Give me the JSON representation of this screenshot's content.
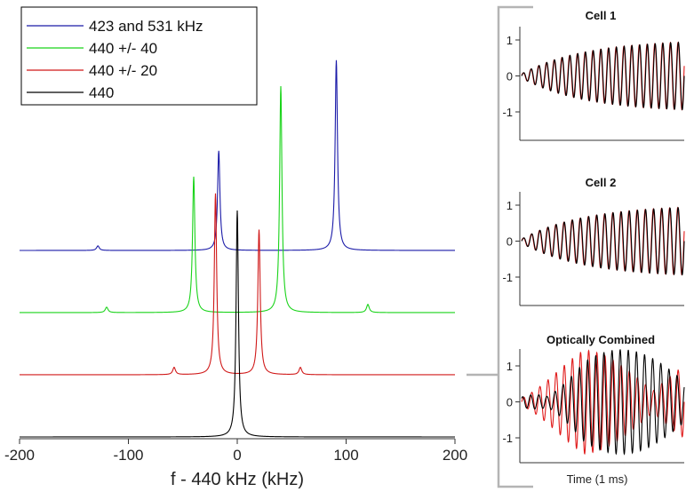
{
  "chart_data": [
    {
      "type": "line",
      "title": "",
      "xlabel": "f - 440 kHz (kHz)",
      "ylabel": "",
      "xlim": [
        -200,
        200
      ],
      "xticks": [
        -200,
        -100,
        0,
        100,
        200
      ],
      "xtick_labels": [
        "-200",
        "-100",
        "0",
        "100",
        "200"
      ],
      "legend_position": "top-left",
      "series": [
        {
          "name": "423 and 531 kHz",
          "color": "#1a1aa8",
          "baseline_offset": 3,
          "peaks": [
            {
              "x": -17,
              "height": 1.1
            },
            {
              "x": 91,
              "height": 2.1
            },
            {
              "x": -128,
              "height": 0.05
            }
          ]
        },
        {
          "name": "440 +/- 40",
          "color": "#19d319",
          "baseline_offset": 2,
          "peaks": [
            {
              "x": -40,
              "height": 1.5
            },
            {
              "x": 40,
              "height": 2.5
            },
            {
              "x": -120,
              "height": 0.06
            },
            {
              "x": 120,
              "height": 0.09
            }
          ]
        },
        {
          "name": "440 +/- 20",
          "color": "#d01818",
          "baseline_offset": 1,
          "peaks": [
            {
              "x": -20,
              "height": 2.0
            },
            {
              "x": 20,
              "height": 1.6
            },
            {
              "x": -58,
              "height": 0.08
            },
            {
              "x": 58,
              "height": 0.08
            }
          ]
        },
        {
          "name": "440",
          "color": "#000000",
          "baseline_offset": 0,
          "peaks": [
            {
              "x": 0,
              "height": 2.5
            }
          ]
        }
      ]
    },
    {
      "type": "line",
      "title": "Cell 1",
      "xlabel": "",
      "ylim": [
        -1.8,
        1.4
      ],
      "yticks": [
        -1,
        0,
        1
      ],
      "ytick_labels": [
        "-1",
        "0",
        "1"
      ],
      "series": [
        {
          "name": "red",
          "color": "#e01a1a",
          "frequency": 21,
          "phase": 0.3
        },
        {
          "name": "black",
          "color": "#000000",
          "frequency": 21,
          "phase": 0
        }
      ]
    },
    {
      "type": "line",
      "title": "Cell 2",
      "xlabel": "",
      "ylim": [
        -1.8,
        1.4
      ],
      "yticks": [
        -1,
        0,
        1
      ],
      "ytick_labels": [
        "-1",
        "0",
        "1"
      ],
      "series": [
        {
          "name": "red",
          "color": "#e01a1a",
          "frequency": 20,
          "phase": 0.3
        },
        {
          "name": "black",
          "color": "#000000",
          "frequency": 20,
          "phase": 0
        }
      ]
    },
    {
      "type": "line",
      "title": "Optically Combined",
      "xlabel": "Time (1 ms)",
      "ylim": [
        -1.8,
        1.4
      ],
      "yticks": [
        -1,
        0,
        1
      ],
      "ytick_labels": [
        "-1",
        "0",
        "1"
      ],
      "series": [
        {
          "name": "red",
          "color": "#e01a1a",
          "frequency": 20
        },
        {
          "name": "black",
          "color": "#000000",
          "frequency": 20
        }
      ]
    }
  ]
}
